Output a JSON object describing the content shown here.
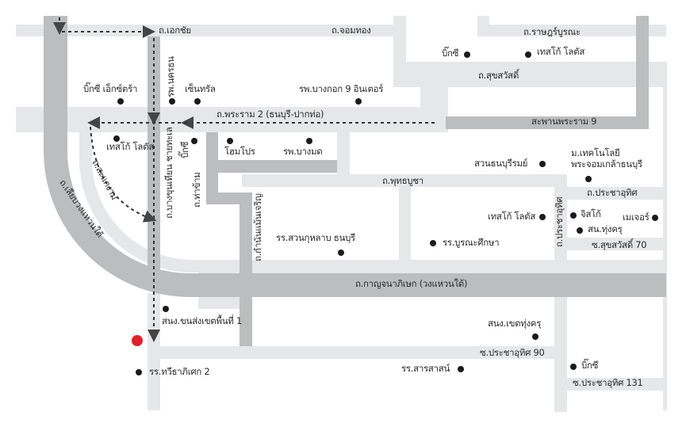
{
  "map": {
    "colors": {
      "minor_road": "#e6e7e8",
      "major_road": "#bcbdbf",
      "route": "#333333",
      "destination": "#e0202a",
      "poi": "#1a1a1a"
    },
    "roads": {
      "ekkachai": "ถ.เอกชัย",
      "chomthong": "ถ.จอมทอง",
      "ratburana": "ถ.ราษฎร์บูรณะ",
      "suksawat": "ถ.สุขสวัสดิ์",
      "rama2": "ถ.พระราม 2 (ธนบุรี-ปากท่อ)",
      "rama9_bridge": "สะพานพระราม 9",
      "phutthabucha": "ถ.พุทธบูชา",
      "prachauthit": "ถ.ประชาอุทิศ",
      "prachauthit_v": "ถ.ประชาอุทิศ",
      "suksawat70": "ซ.สุขสวัสดิ์ 70",
      "kanchanaphisek": "ถ.กาญจนาภิเษก (วงแหวนใต้)",
      "prachauthit90": "ซ.ประชาอุทิศ 90",
      "prachauthit131": "ซ.ประชาอุทิศ 131",
      "bangkhunthian": "ถ.บางขุนเทียน ชายทะเล",
      "thakham": "ถ.ท่าข้าม",
      "kamnanmaen": "ถ.กำนันแม้นเจริญ",
      "sakaengam": "ถ.สะแกงาม",
      "liapwongwaen": "ถ.เลียบวงแหวนใต้"
    },
    "pois": [
      "บิ๊กซี เอ็กซ์ตร้า",
      "เซ็นทรัล",
      "รพ.นครธน",
      "รพ.บางกอก 9 อินเตอร์",
      "เทสโก้ โลตัส",
      "บิ๊กซี",
      "โฮมโปร",
      "รพ.บางมด",
      "บิ๊กซี",
      "เทสโก้ โลตัส",
      "สวนธนบุรีรมย์",
      "ม.เทคโนโลยี",
      "พระจอมเกล้าธนบุรี",
      "เทสโก้ โลตัส",
      "จิสโก้",
      "เมเจอร์",
      "สน.ทุ่งครุ",
      "รร.บูรณะศึกษา",
      "รร.สวนกุหลาบ ธนบุรี",
      "สนง.ขนส่งเขตพื้นที่ 1",
      "สนง.เขตทุ่งครุ",
      "รร.สารสาสน์",
      "บิ๊กซี",
      "รร.ทวีธาภิเศก 2"
    ]
  }
}
